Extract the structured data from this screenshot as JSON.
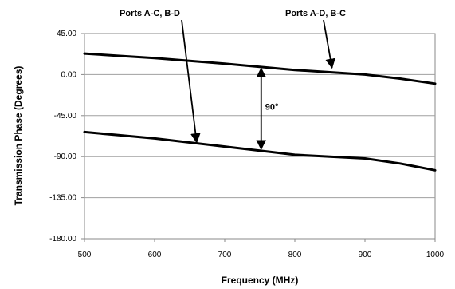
{
  "chart_data": {
    "type": "line",
    "title": "",
    "xlabel": "Frequency (MHz)",
    "ylabel": "Transmission Phase (Degrees)",
    "xlim": [
      500,
      1000
    ],
    "ylim": [
      -180,
      45
    ],
    "x_ticks": [
      500,
      600,
      700,
      800,
      900,
      1000
    ],
    "y_ticks": [
      45,
      0,
      -45,
      -90,
      -135,
      -180
    ],
    "x_tick_labels": [
      "500",
      "600",
      "700",
      "800",
      "900",
      "1000"
    ],
    "y_tick_labels": [
      "45.00",
      "0.00",
      "-45.00",
      "-90.00",
      "-135.00",
      "-180.00"
    ],
    "grid": "horizontal",
    "series": [
      {
        "x": [
          500,
          550,
          600,
          650,
          700,
          750,
          800,
          850,
          900,
          950,
          1000
        ],
        "y": [
          23,
          20.5,
          18,
          15,
          12,
          8.5,
          5,
          2.5,
          0,
          -4.5,
          -10
        ]
      },
      {
        "x": [
          500,
          550,
          600,
          650,
          700,
          750,
          800,
          850,
          900,
          950,
          1000
        ],
        "y": [
          -63,
          -66.5,
          -70,
          -74.5,
          -79,
          -83.5,
          -88,
          -90,
          -92,
          -97.5,
          -105
        ]
      }
    ],
    "annotations": {
      "label_ac_bd": "Ports A-C, B-D",
      "label_ad_bc": "Ports A-D, B-C",
      "label_90": "90°",
      "ac_bd_target": {
        "x": 660,
        "y": -77
      },
      "ad_bc_target": {
        "x": 853,
        "y": 3
      },
      "span_x": 752,
      "span_y_top": 8.5,
      "span_y_bottom": -83.5
    }
  }
}
